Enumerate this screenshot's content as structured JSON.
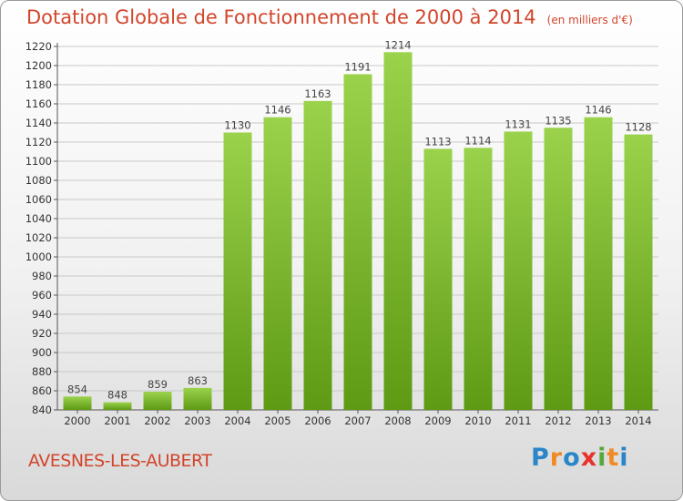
{
  "header": {
    "title": "Dotation Globale de Fonctionnement de 2000 à 2014",
    "unit": "(en milliers d'€)"
  },
  "footer": {
    "commune": "AVESNES-LES-AUBERT",
    "logo": "Proxiti"
  },
  "colors": {
    "title": "#d2452b",
    "bar_top": "#9bd24c",
    "bar_bottom": "#5e9a14",
    "grid": "#c8c8c8"
  },
  "chart_data": {
    "type": "bar",
    "title": "Dotation Globale de Fonctionnement de 2000 à 2014",
    "subtitle": "(en milliers d'€)",
    "xlabel": "",
    "ylabel": "",
    "categories": [
      "2000",
      "2001",
      "2002",
      "2003",
      "2004",
      "2005",
      "2006",
      "2007",
      "2008",
      "2009",
      "2010",
      "2011",
      "2012",
      "2013",
      "2014"
    ],
    "values": [
      854,
      848,
      859,
      863,
      1130,
      1146,
      1163,
      1191,
      1214,
      1113,
      1114,
      1131,
      1135,
      1146,
      1128
    ],
    "ylim": [
      840,
      1220
    ],
    "yticks": [
      840,
      860,
      880,
      900,
      920,
      940,
      960,
      980,
      1000,
      1020,
      1040,
      1060,
      1080,
      1100,
      1120,
      1140,
      1160,
      1180,
      1200,
      1220
    ],
    "grid": true,
    "legend": "none"
  }
}
